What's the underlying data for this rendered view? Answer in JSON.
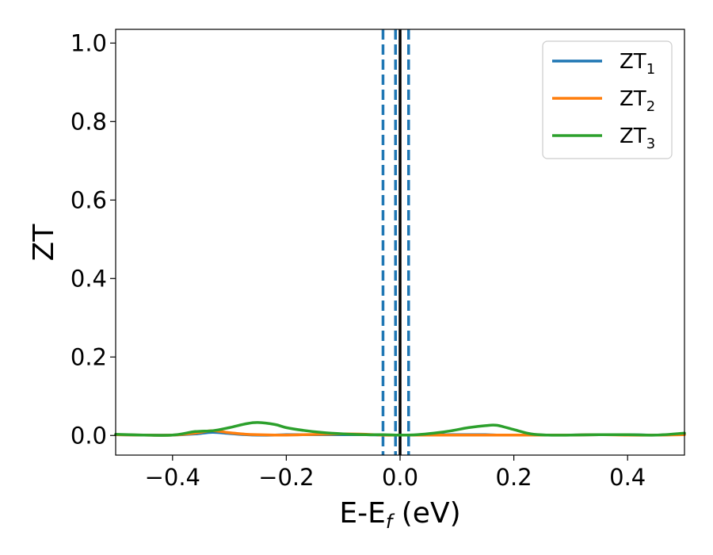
{
  "chart_data": {
    "type": "line",
    "title": "",
    "xlabel": "E-E",
    "xlabel_sub": "f",
    "xlabel_unit": " (eV)",
    "ylabel": "ZT",
    "xlim": [
      -0.5,
      0.5
    ],
    "ylim": [
      -0.05,
      1.035
    ],
    "xticks": [
      -0.4,
      -0.2,
      0.0,
      0.2,
      0.4
    ],
    "xtick_labels": [
      "−0.4",
      "−0.2",
      "0.0",
      "0.2",
      "0.4"
    ],
    "yticks": [
      0.0,
      0.2,
      0.4,
      0.6,
      0.8,
      1.0
    ],
    "ytick_labels": [
      "0.0",
      "0.2",
      "0.4",
      "0.6",
      "0.8",
      "1.0"
    ],
    "grid": false,
    "legend_position": "top-right",
    "vlines": [
      {
        "x": -0.03,
        "style": "dashed",
        "color": "#1f77b4"
      },
      {
        "x": -0.008,
        "style": "dashed",
        "color": "#1f77b4"
      },
      {
        "x": 0.0,
        "style": "solid",
        "color": "#000000"
      },
      {
        "x": 0.015,
        "style": "dashed",
        "color": "#1f77b4"
      }
    ],
    "x": [
      -0.5,
      -0.45,
      -0.4,
      -0.36,
      -0.33,
      -0.3,
      -0.27,
      -0.25,
      -0.22,
      -0.2,
      -0.17,
      -0.14,
      -0.1,
      -0.06,
      -0.03,
      0.0,
      0.03,
      0.06,
      0.09,
      0.12,
      0.15,
      0.17,
      0.2,
      0.23,
      0.26,
      0.3,
      0.35,
      0.4,
      0.45,
      0.5
    ],
    "series": [
      {
        "name": "ZT",
        "name_sub": "1",
        "color": "#1f77b4",
        "values": [
          0.002,
          0.001,
          0.001,
          0.004,
          0.008,
          0.005,
          0.002,
          0.001,
          0.001,
          0.002,
          0.002,
          0.002,
          0.002,
          0.002,
          0.001,
          0.001,
          0.001,
          0.002,
          0.002,
          0.002,
          0.002,
          0.001,
          0.001,
          0.001,
          0.001,
          0.001,
          0.002,
          0.002,
          0.001,
          0.003
        ]
      },
      {
        "name": "ZT",
        "name_sub": "2",
        "color": "#ff7f0e",
        "values": [
          0.002,
          0.001,
          0.001,
          0.006,
          0.012,
          0.007,
          0.003,
          0.002,
          0.001,
          0.001,
          0.002,
          0.003,
          0.004,
          0.003,
          0.001,
          0.001,
          0.001,
          0.001,
          0.001,
          0.001,
          0.001,
          0.001,
          0.001,
          0.001,
          0.001,
          0.001,
          0.002,
          0.001,
          0.001,
          0.002
        ]
      },
      {
        "name": "ZT",
        "name_sub": "3",
        "color": "#2ca02c",
        "values": [
          0.003,
          0.001,
          0.001,
          0.01,
          0.012,
          0.02,
          0.03,
          0.033,
          0.028,
          0.02,
          0.013,
          0.008,
          0.004,
          0.002,
          0.002,
          0.001,
          0.002,
          0.006,
          0.012,
          0.02,
          0.025,
          0.026,
          0.015,
          0.004,
          0.001,
          0.001,
          0.002,
          0.002,
          0.001,
          0.006
        ]
      }
    ]
  }
}
